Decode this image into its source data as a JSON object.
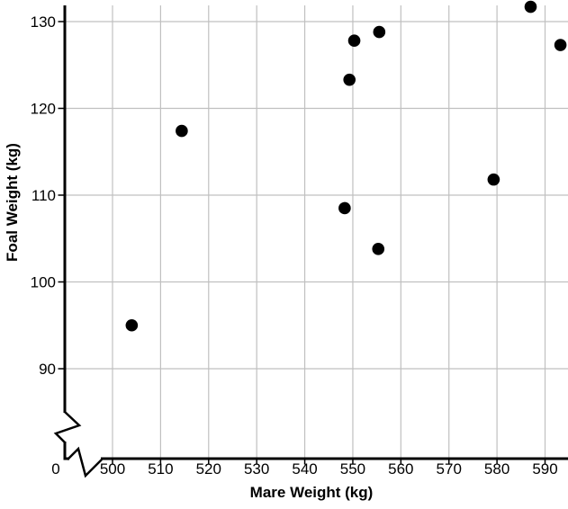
{
  "chart_data": {
    "type": "scatter",
    "title": "",
    "xlabel": "Mare Weight (kg)",
    "ylabel": "Foal Weight (kg)",
    "origin_label": "0",
    "x_ticks": [
      500,
      510,
      520,
      530,
      540,
      550,
      560,
      570,
      580,
      590
    ],
    "y_ticks": [
      90,
      100,
      110,
      120,
      130
    ],
    "xlim": [
      500,
      595
    ],
    "ylim": [
      85,
      132
    ],
    "grid": "on",
    "legend": "none",
    "axis_break": {
      "x": true,
      "y": true
    },
    "marker": "filled-black-circle",
    "points": [
      {
        "x": 504.0,
        "y": 95.0
      },
      {
        "x": 514.4,
        "y": 117.4
      },
      {
        "x": 548.3,
        "y": 108.5
      },
      {
        "x": 549.3,
        "y": 123.3
      },
      {
        "x": 550.3,
        "y": 127.8
      },
      {
        "x": 555.3,
        "y": 103.8
      },
      {
        "x": 555.5,
        "y": 128.8
      },
      {
        "x": 579.3,
        "y": 111.8
      },
      {
        "x": 587.0,
        "y": 131.7
      },
      {
        "x": 593.2,
        "y": 127.3
      }
    ],
    "colors": {
      "point": "#000000",
      "axis": "#000000",
      "grid": "#c0c0c0",
      "text": "#000000",
      "background": "#ffffff"
    }
  }
}
